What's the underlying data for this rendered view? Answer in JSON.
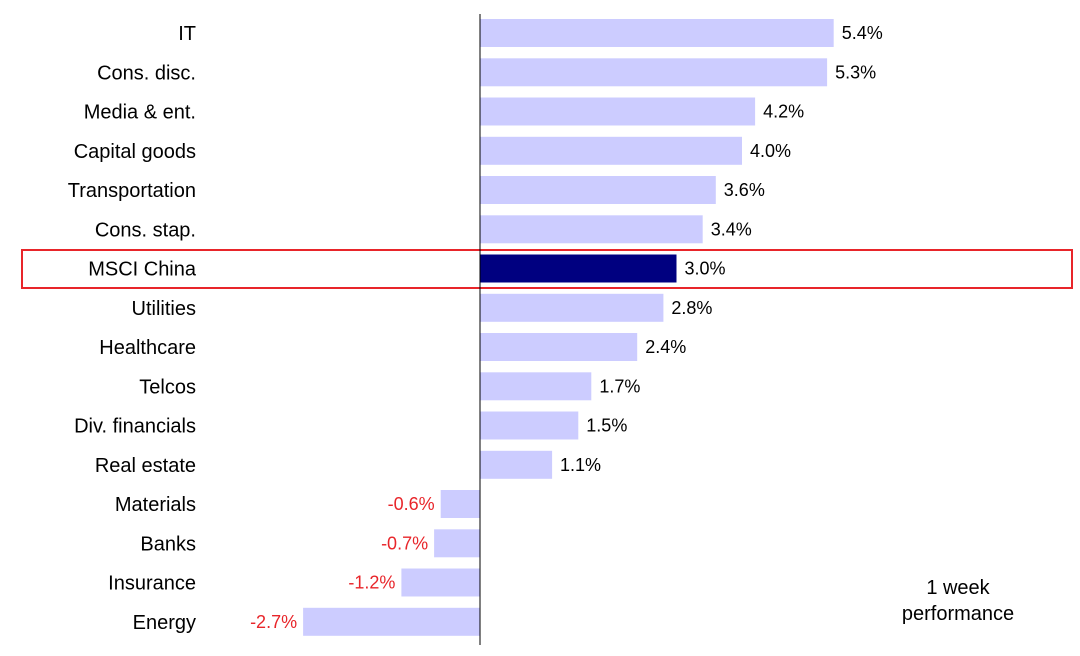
{
  "chart_data": {
    "type": "bar",
    "orientation": "horizontal",
    "categories": [
      "IT",
      "Cons. disc.",
      "Media & ent.",
      "Capital goods",
      "Transportation",
      "Cons. stap.",
      "MSCI China",
      "Utilities",
      "Healthcare",
      "Telcos",
      "Div. financials",
      "Real estate",
      "Materials",
      "Banks",
      "Insurance",
      "Energy"
    ],
    "values": [
      5.4,
      5.3,
      4.2,
      4.0,
      3.6,
      3.4,
      3.0,
      2.8,
      2.4,
      1.7,
      1.5,
      1.1,
      -0.6,
      -0.7,
      -1.2,
      -2.7
    ],
    "value_labels": [
      "5.4%",
      "5.3%",
      "4.2%",
      "4.0%",
      "3.6%",
      "3.4%",
      "3.0%",
      "2.8%",
      "2.4%",
      "1.7%",
      "1.5%",
      "1.1%",
      "-0.6%",
      "-0.7%",
      "-1.2%",
      "-2.7%"
    ],
    "highlight_category": "MSCI China",
    "annotation": [
      "1 week",
      "performance"
    ],
    "xlim": [
      -2.7,
      5.4
    ],
    "grid": false,
    "legend": "none",
    "colors": {
      "bar": "#ccccff",
      "highlight_bar": "#000080",
      "highlight_box": "#e8252a",
      "negative_label": "#e8252a",
      "positive_label": "#000000",
      "axis": "#000000"
    }
  }
}
